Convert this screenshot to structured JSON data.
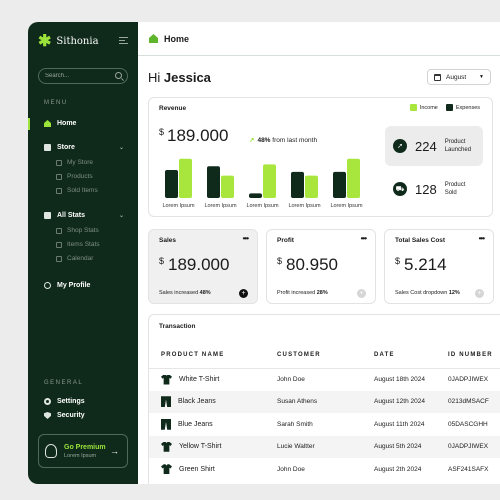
{
  "sidebar": {
    "brand": "Sithonia",
    "search_placeholder": "Search...",
    "menu_label": "MENU",
    "items": {
      "home": "Home",
      "store": "Store",
      "my_store": "My Store",
      "products": "Products",
      "sold_items": "Sold Items",
      "all_stats": "All Stats",
      "shop_stats": "Shop Stats",
      "items_stats": "Items Stats",
      "calendar": "Calendar",
      "my_profile": "My Profile"
    },
    "general_label": "GENERAL",
    "settings": "Settings",
    "security": "Security",
    "premium": {
      "title": "Go Premium",
      "subtitle": "Lorem Ipsum"
    }
  },
  "header": {
    "title": "Home"
  },
  "greeting": {
    "prefix": "Hi",
    "name": "Jessica"
  },
  "month_select": {
    "value": "August"
  },
  "revenue": {
    "title": "Revenue",
    "legend": {
      "income": "Income",
      "expenses": "Expenses"
    },
    "currency": "$",
    "value": "189.000",
    "change_pct": "48%",
    "change_text": "from last month",
    "stats": [
      {
        "value": "224",
        "label_line1": "Product",
        "label_line2": "Launched",
        "icon": "rocket-icon"
      },
      {
        "value": "128",
        "label_line1": "Product",
        "label_line2": "Sold",
        "icon": "cart-icon"
      }
    ]
  },
  "chart_data": {
    "type": "bar",
    "categories": [
      "Lorem Ipsum",
      "Lorem Ipsum",
      "Lorem Ipsum",
      "Lorem Ipsum",
      "Lorem Ipsum"
    ],
    "series": [
      {
        "name": "Expenses",
        "values": [
          30,
          34,
          5,
          28,
          28
        ],
        "color": "#0f2a1b"
      },
      {
        "name": "Income",
        "values": [
          42,
          24,
          36,
          24,
          42
        ],
        "color": "#a8e63d"
      }
    ],
    "ylim": [
      0,
      45
    ],
    "grid": false,
    "legend_placement": "top-right"
  },
  "kpis": [
    {
      "title": "Sales",
      "currency": "$",
      "value": "189.000",
      "footer_text": "Sales increased",
      "footer_pct": "48%"
    },
    {
      "title": "Profit",
      "currency": "$",
      "value": "80.950",
      "footer_text": "Profit increased",
      "footer_pct": "28%"
    },
    {
      "title": "Total Sales Cost",
      "currency": "$",
      "value": "5.214",
      "footer_text": "Sales Cost dropdown",
      "footer_pct": "12%"
    }
  ],
  "kpi_more": "•••",
  "transactions": {
    "title": "Transaction",
    "columns": [
      "PRODUCT NAME",
      "CUSTOMER",
      "DATE",
      "ID NUMBER"
    ],
    "rows": [
      {
        "product": "White T-Shirt",
        "customer": "John Doe",
        "date": "August 18th 2024",
        "id": "0JADPJIWEX",
        "icon": "tshirt-icon"
      },
      {
        "product": "Black Jeans",
        "customer": "Susan Athens",
        "date": "August 12th 2024",
        "id": "0213dMSACF",
        "icon": "jeans-icon"
      },
      {
        "product": "Blue Jeans",
        "customer": "Sarah Smith",
        "date": "August 11th 2024",
        "id": "05DASCGHH",
        "icon": "jeans-icon"
      },
      {
        "product": "Yellow T-Shirt",
        "customer": "Lucie Waltter",
        "date": "August 5th 2024",
        "id": "0JADPJIWEX",
        "icon": "tshirt-icon"
      },
      {
        "product": "Green Shirt",
        "customer": "John Doe",
        "date": "August 2th 2024",
        "id": "ASF241SAFX",
        "icon": "tshirt-icon"
      }
    ]
  },
  "colors": {
    "sidebar_bg": "#0f2a1b",
    "accent": "#9be33a",
    "income": "#a8e63d",
    "expenses": "#0f2a1b"
  }
}
